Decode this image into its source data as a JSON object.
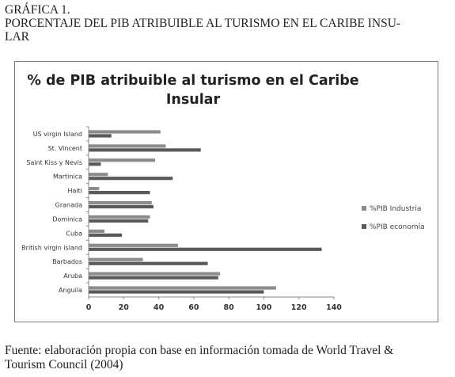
{
  "heading": {
    "line1": "GRÁFICA 1.",
    "line2": "PORCENTAJE DEL PIB ATRIBUIBLE AL TURISMO EN EL CARIBE INSU-",
    "line3": "LAR"
  },
  "source": {
    "line1": "Fuente: elaboración propia con base en información tomada de World Travel &",
    "line2": "Tourism Council (2004)"
  },
  "colors": {
    "industria": "#8c8c8c",
    "economia": "#5a5a5a"
  },
  "chart_data": {
    "type": "bar",
    "orientation": "horizontal",
    "title_line1": "% de PIB atribuible al turismo en el Caribe",
    "title_line2": "Insular",
    "categories": [
      "US virgin Island",
      "St. Vincent",
      "Saint Kiss y Nevis",
      "Martinica",
      "Haiti",
      "Granada",
      "Dominica",
      "Cuba",
      "British virgin island",
      "Barbados",
      "Aruba",
      "Anguila"
    ],
    "series": [
      {
        "name": "%PIB Industria",
        "values": [
          41,
          44,
          38,
          11,
          6,
          36,
          35,
          9,
          51,
          31,
          75,
          107
        ]
      },
      {
        "name": "%PIB economía",
        "values": [
          13,
          64,
          7,
          48,
          35,
          37,
          34,
          19,
          133,
          68,
          74,
          100
        ]
      }
    ],
    "xlim": [
      0,
      140
    ],
    "xticks": [
      "0",
      "20",
      "40",
      "60",
      "80",
      "100",
      "120",
      "140"
    ],
    "legend_position": "right",
    "grid": false
  }
}
